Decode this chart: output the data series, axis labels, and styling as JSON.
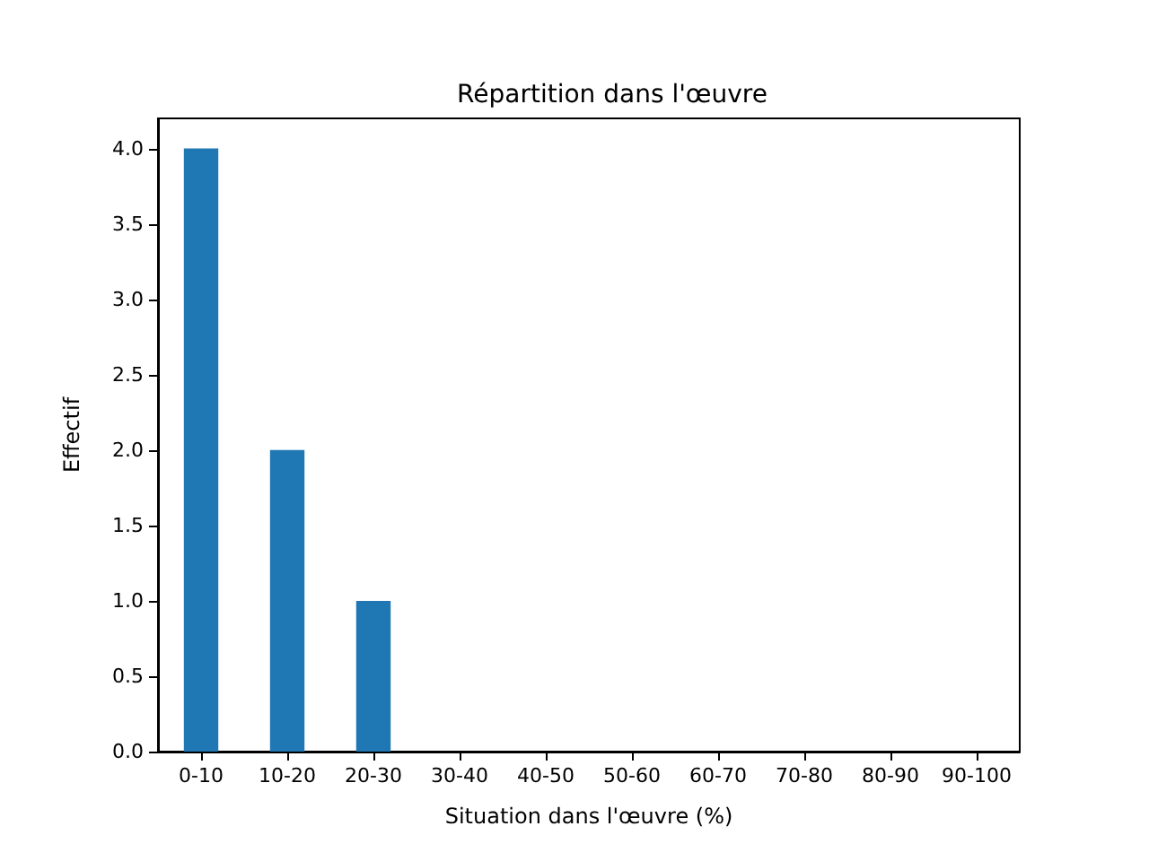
{
  "chart_data": {
    "type": "bar",
    "title": "Répartition dans l'œuvre",
    "xlabel": "Situation dans l'œuvre (%)",
    "ylabel": "Effectif",
    "categories": [
      "0-10",
      "10-20",
      "20-30",
      "30-40",
      "40-50",
      "50-60",
      "60-70",
      "70-80",
      "80-90",
      "90-100"
    ],
    "values": [
      4,
      2,
      1,
      0,
      0,
      0,
      0,
      0,
      0,
      0
    ],
    "color": "#1f77b4",
    "ylim": [
      0,
      4.2
    ],
    "yticks": [
      {
        "value": 0,
        "label": "0.0"
      },
      {
        "value": 0.5,
        "label": "0.5"
      },
      {
        "value": 1,
        "label": "1.0"
      },
      {
        "value": 1.5,
        "label": "1.5"
      },
      {
        "value": 2,
        "label": "2.0"
      },
      {
        "value": 2.5,
        "label": "2.5"
      },
      {
        "value": 3,
        "label": "3.0"
      },
      {
        "value": 3.5,
        "label": "3.5"
      },
      {
        "value": 4,
        "label": "4.0"
      }
    ],
    "grid": false
  }
}
